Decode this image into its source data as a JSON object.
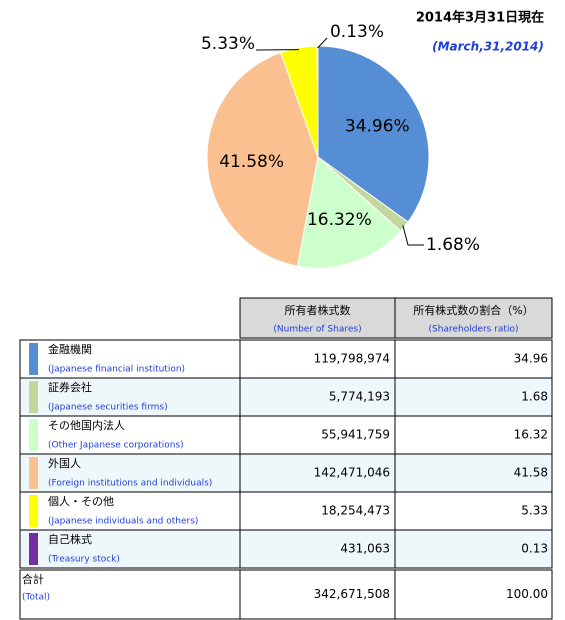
{
  "chart_data": {
    "type": "pie",
    "date": "2014年3月31日現在",
    "date_en": "(March,31,2014)",
    "categories": [
      "金融機関",
      "証券会社",
      "その他国内法人",
      "外国人",
      "個人・その他",
      "自己株式"
    ],
    "values": [
      34.96,
      1.68,
      16.32,
      41.58,
      5.33,
      0.13
    ],
    "value_labels": [
      "34.96%",
      "1.68%",
      "16.32%",
      "41.58%",
      "5.33%",
      "0.13%"
    ],
    "colors": [
      "#558ed5",
      "#c3d69b",
      "#ccffcc",
      "#fac090",
      "#ffff00",
      "#7030a0"
    ]
  },
  "table": {
    "header": [
      [
        "所有者株式数",
        "(Number of Shares)"
      ],
      [
        "所有株式数の割合（%）",
        "(Shareholders ratio)"
      ]
    ],
    "rows": [
      [
        "金融機関",
        "(Japanese financial institution)",
        "119,798,974",
        "34.96"
      ],
      [
        "証券会社",
        "(Japanese securities firms)",
        "5,774,193",
        "1.68"
      ],
      [
        "その他国内法人",
        "(Other Japanese corporations)",
        "55,941,759",
        "16.32"
      ],
      [
        "外国人",
        "(Foreign institutions and individuals)",
        "142,471,046",
        "41.58"
      ],
      [
        "個人・その他",
        "(Japanese individuals and others)",
        "18,254,473",
        "5.33"
      ],
      [
        "自己株式",
        "(Treasury stock)",
        "431,063",
        "0.13"
      ]
    ],
    "total": [
      "合計",
      "(Total)",
      "342,671,508",
      "100.00"
    ]
  }
}
